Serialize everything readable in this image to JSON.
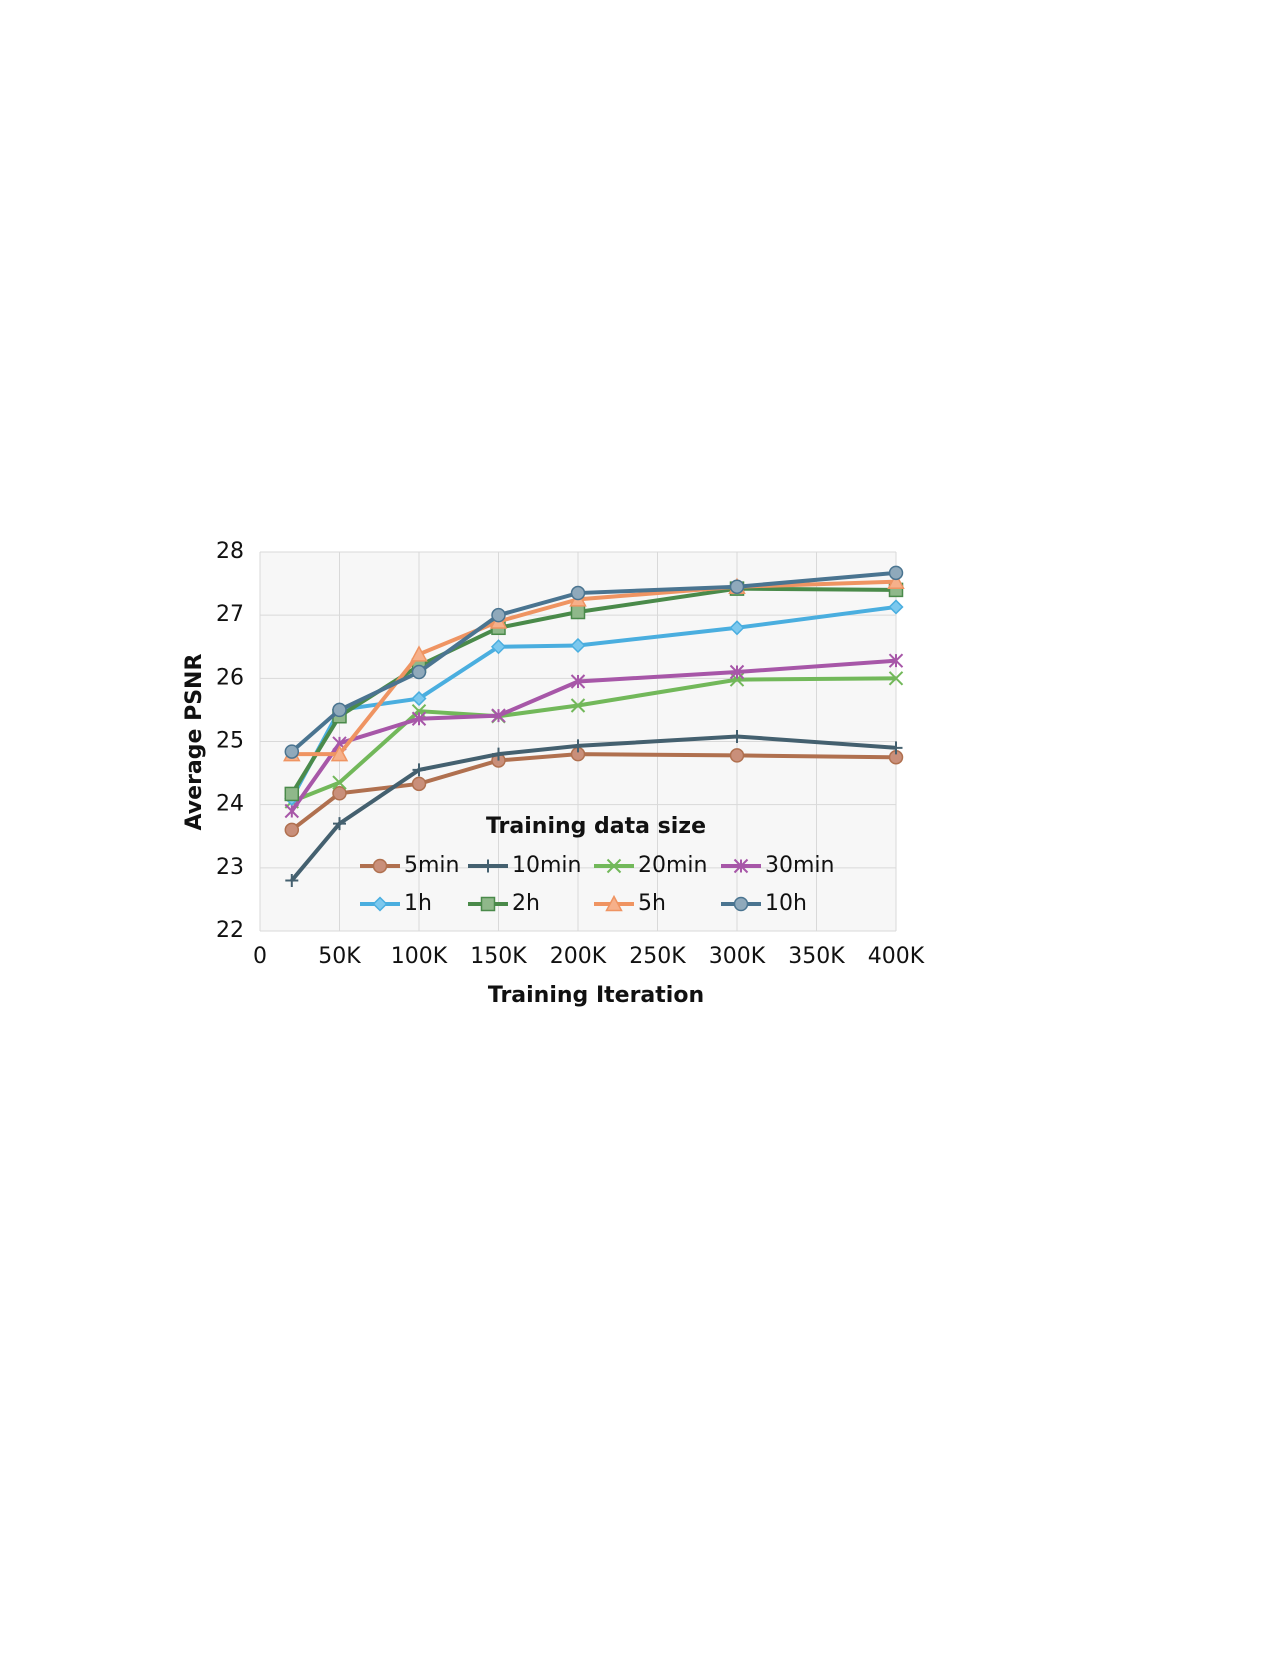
{
  "chart_data": {
    "type": "line",
    "x_label": "Training Iteration",
    "y_label": "Average PSNR",
    "legend_title": "Training data size",
    "x": [
      20000,
      50000,
      100000,
      150000,
      200000,
      300000,
      400000
    ],
    "xlim": [
      0,
      400000
    ],
    "xticks": [
      0,
      {
        "value": 50000,
        "label": "50K"
      },
      {
        "value": 100000,
        "label": "100K"
      },
      {
        "value": 150000,
        "label": "150K"
      },
      {
        "value": 200000,
        "label": "200K"
      },
      {
        "value": 250000,
        "label": "250K"
      },
      {
        "value": 300000,
        "label": "300K"
      },
      {
        "value": 350000,
        "label": "350K"
      },
      {
        "value": 400000,
        "label": "400K"
      }
    ],
    "ylim": [
      22,
      28
    ],
    "yticks": [
      22,
      23,
      24,
      25,
      26,
      27,
      28
    ],
    "grid": true,
    "series": [
      {
        "name": "5min",
        "color": "#b0704f",
        "marker_fill": "#c98f7a",
        "marker": "circle",
        "values": [
          23.6,
          24.18,
          24.33,
          24.7,
          24.8,
          24.78,
          24.75
        ]
      },
      {
        "name": "10min",
        "color": "#44606f",
        "marker_fill": "#44606f",
        "marker": "plus",
        "values": [
          22.8,
          23.7,
          24.55,
          24.8,
          24.93,
          25.08,
          24.9
        ]
      },
      {
        "name": "20min",
        "color": "#72b85a",
        "marker_fill": "#72b85a",
        "marker": "x",
        "values": [
          24.05,
          24.35,
          25.48,
          25.4,
          25.57,
          25.98,
          26.0
        ]
      },
      {
        "name": "30min",
        "color": "#a757a8",
        "marker_fill": "#a757a8",
        "marker": "star",
        "values": [
          23.9,
          24.97,
          25.36,
          25.41,
          25.95,
          26.1,
          26.28
        ]
      },
      {
        "name": "1h",
        "color": "#4aaedf",
        "marker_fill": "#7cc8ee",
        "marker": "diamond",
        "values": [
          24.1,
          25.5,
          25.68,
          26.5,
          26.52,
          26.8,
          27.13
        ]
      },
      {
        "name": "2h",
        "color": "#4a8a4a",
        "marker_fill": "#8fb88a",
        "marker": "square",
        "values": [
          24.17,
          25.4,
          26.2,
          26.8,
          27.05,
          27.42,
          27.4
        ]
      },
      {
        "name": "5h",
        "color": "#ef9462",
        "marker_fill": "#f6b08a",
        "marker": "triangle",
        "values": [
          24.8,
          24.8,
          26.38,
          26.9,
          27.25,
          27.45,
          27.53
        ]
      },
      {
        "name": "10h",
        "color": "#4a7490",
        "marker_fill": "#8fa9bb",
        "marker": "circle",
        "values": [
          24.84,
          25.5,
          26.1,
          27.0,
          27.35,
          27.45,
          27.67
        ]
      }
    ]
  }
}
